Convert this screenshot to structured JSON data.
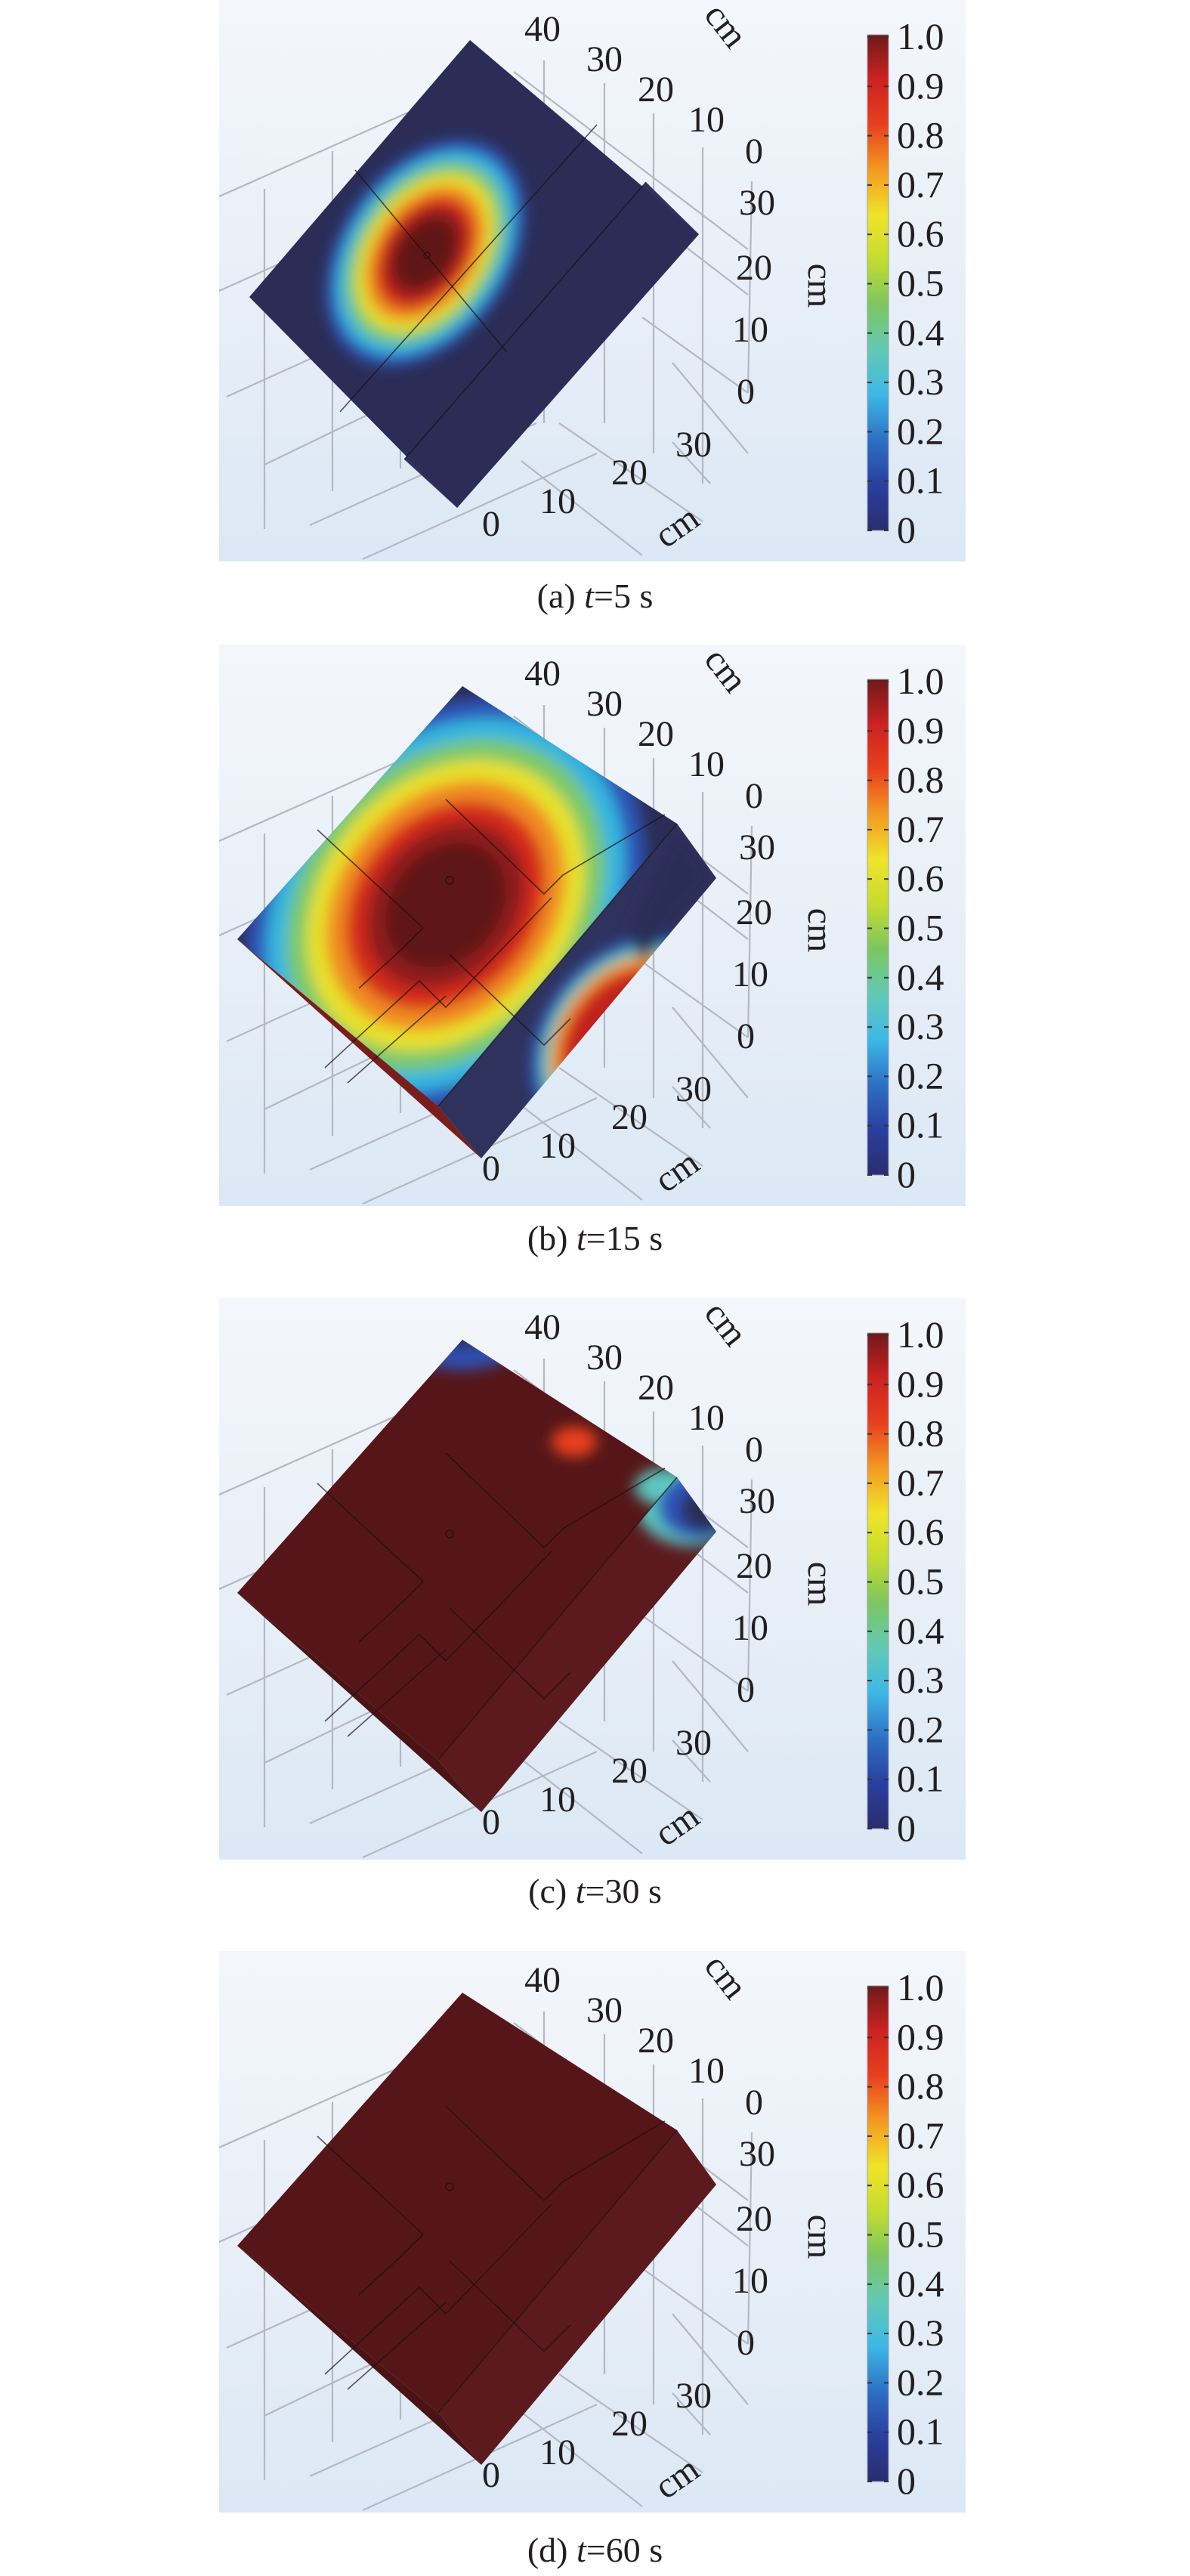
{
  "panels": [
    {
      "id": "a",
      "caption_prefix": "(a) ",
      "caption_var": "t",
      "caption_suffix": "=5 s",
      "time_s": 5,
      "state": "small-central-spot"
    },
    {
      "id": "b",
      "caption_prefix": "(b) ",
      "caption_var": "t",
      "caption_suffix": "=15 s",
      "time_s": 15,
      "state": "large-spot-covering-most-of-top-face"
    },
    {
      "id": "c",
      "caption_prefix": "(c) ",
      "caption_var": "t",
      "caption_suffix": "=30 s",
      "time_s": 30,
      "state": "nearly-all-saturated-with-blue-corners"
    },
    {
      "id": "d",
      "caption_prefix": "(d) ",
      "caption_var": "t",
      "caption_suffix": "=60 s",
      "time_s": 60,
      "state": "fully-saturated"
    }
  ],
  "axes": {
    "top_axis_ticks": [
      "40",
      "30",
      "20",
      "10",
      "0"
    ],
    "top_axis_unit": "cm",
    "vertical_axis_ticks": [
      "30",
      "20",
      "10",
      "0"
    ],
    "vertical_axis_unit": "cm",
    "bottom_axis_ticks": [
      "30",
      "20",
      "10",
      "0"
    ],
    "bottom_axis_unit": "cm"
  },
  "colorbar": {
    "ticks": [
      "1.0",
      "0.9",
      "0.8",
      "0.7",
      "0.6",
      "0.5",
      "0.4",
      "0.3",
      "0.2",
      "0.1",
      "0"
    ],
    "range": [
      0,
      1
    ],
    "colormap": "jet"
  },
  "colors": {
    "low": "#2b2d57",
    "high": "#561619",
    "background_top": "#f4f6fb",
    "background_bottom": "#dce8f5"
  },
  "chart_data": {
    "type": "heatmap",
    "subtype": "3d-surface-color-map",
    "time_series_s": [
      5,
      15,
      30,
      60
    ],
    "colorbar_range": [
      0,
      1
    ],
    "colorbar_ticks": [
      1.0,
      0.9,
      0.8,
      0.7,
      0.6,
      0.5,
      0.4,
      0.3,
      0.2,
      0.1,
      0
    ],
    "x_axis": {
      "label": "cm",
      "ticks": [
        0,
        10,
        20,
        30
      ]
    },
    "y_axis": {
      "label": "cm",
      "ticks": [
        0,
        10,
        20,
        30,
        40
      ]
    },
    "z_axis": {
      "label": "cm",
      "ticks": [
        0,
        10,
        20,
        30
      ]
    },
    "grid": true,
    "legend": "colorbar-right"
  }
}
